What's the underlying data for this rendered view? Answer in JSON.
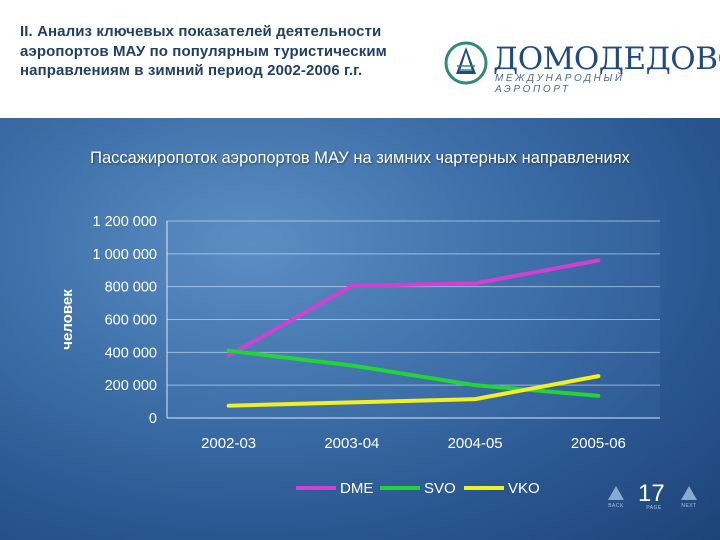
{
  "slide": {
    "heading": "II. Анализ ключевых показателей деятельности аэропортов МАУ по популярным туристическим направлениям в зимний период 2002-2006 г.г.",
    "logo_name": "ДОМОДЕДОВО",
    "logo_subtitle": "МЕЖДУНАРОДНЫЙ АЭРОПОРТ",
    "page_number": "17",
    "nav_back": "BACK",
    "nav_page": "PAGE",
    "nav_next": "NEXT"
  },
  "chart_data": {
    "type": "line",
    "title": "Пассажиропоток аэропортов МАУ на зимних чартерных направлениях",
    "xlabel": "",
    "ylabel": "человек",
    "categories": [
      "2002-03",
      "2003-04",
      "2004-05",
      "2005-06"
    ],
    "ylim": [
      0,
      1200000
    ],
    "yticks": [
      0,
      200000,
      400000,
      600000,
      800000,
      1000000,
      1200000
    ],
    "ytick_labels": [
      "0",
      "200 000",
      "400 000",
      "600 000",
      "800 000",
      "1 000 000",
      "1 200 000"
    ],
    "grid": true,
    "legend": "bottom",
    "series": [
      {
        "name": "DME",
        "color": "#d23fd2",
        "values": [
          380000,
          805000,
          820000,
          960000
        ]
      },
      {
        "name": "SVO",
        "color": "#22d436",
        "values": [
          410000,
          320000,
          200000,
          135000
        ]
      },
      {
        "name": "VKO",
        "color": "#f2ef22",
        "values": [
          75000,
          95000,
          115000,
          255000
        ]
      }
    ]
  }
}
